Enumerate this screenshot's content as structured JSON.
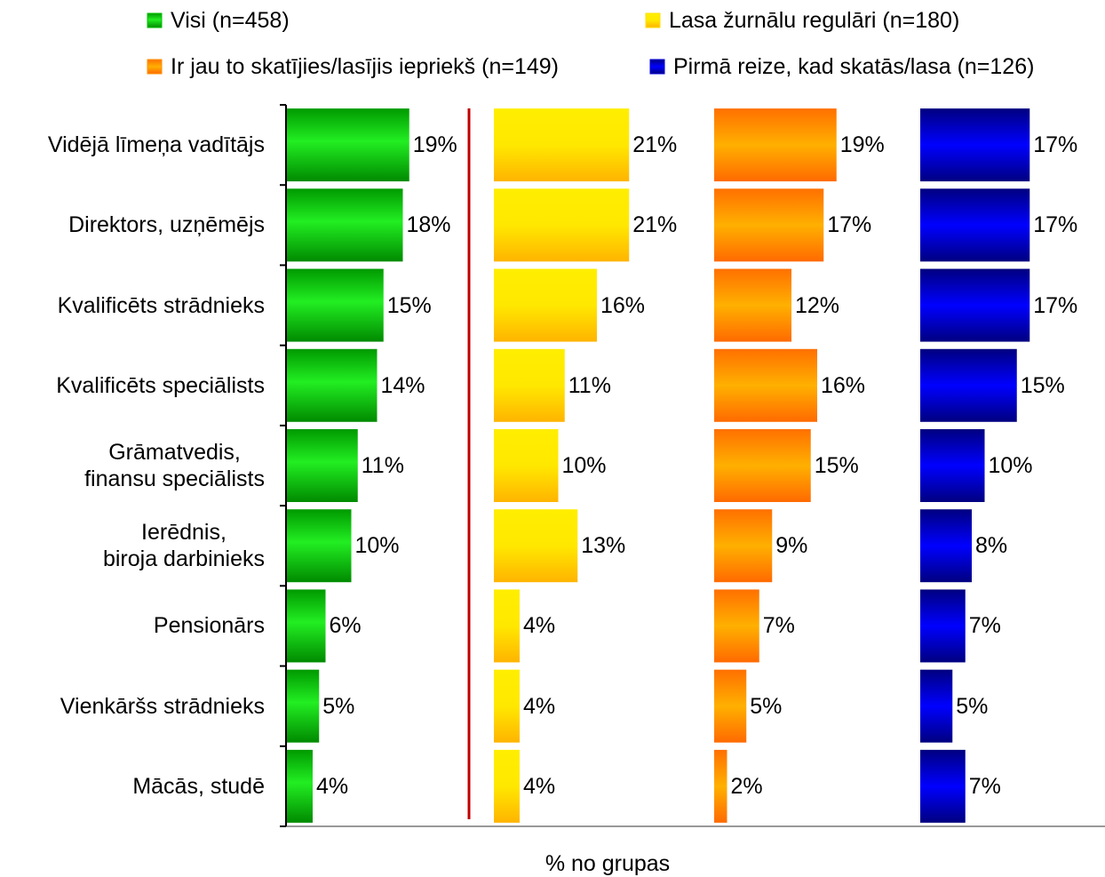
{
  "chart_data": {
    "type": "bar",
    "orientation": "horizontal",
    "layout": "panels",
    "xlabel": "% no grupas",
    "categories": [
      "Vidējā līmeņa vadītājs",
      "Direktors, uzņēmējs",
      "Kvalificēts strādnieks",
      "Kvalificēts speciālists",
      "Grāmatvedis,\nfinansu speciālists",
      "Ierēdnis,\nbiroja darbinieks",
      "Pensionārs",
      "Vienkāršs strādnieks",
      "Mācās, studē"
    ],
    "series": [
      {
        "name": "Visi (n=458)",
        "color": "#00c000",
        "values": [
          19,
          18,
          15,
          14,
          11,
          10,
          6,
          5,
          4
        ],
        "value_labels": [
          "19%",
          "18%",
          "15%",
          "14%",
          "11%",
          "10%",
          "6%",
          "5%",
          "4%"
        ]
      },
      {
        "name": "Lasa žurnālu regulāri  (n=180)",
        "color": "#ffe000",
        "values": [
          21,
          21,
          16,
          11,
          10,
          13,
          4,
          4,
          4
        ],
        "value_labels": [
          "21%",
          "21%",
          "16%",
          "11%",
          "10%",
          "13%",
          "4%",
          "4%",
          "4%"
        ]
      },
      {
        "name": "Ir jau to skatījies/lasījis iepriekš (n=149)",
        "color": "#ff9000",
        "values": [
          19,
          17,
          12,
          16,
          15,
          9,
          7,
          5,
          2
        ],
        "value_labels": [
          "19%",
          "17%",
          "12%",
          "16%",
          "15%",
          "9%",
          "7%",
          "5%",
          "2%"
        ]
      },
      {
        "name": "Pirmā reize, kad skatās/lasa (n=126)",
        "color": "#0000dd",
        "values": [
          17,
          17,
          17,
          15,
          10,
          8,
          7,
          5,
          7
        ],
        "value_labels": [
          "17%",
          "17%",
          "17%",
          "15%",
          "10%",
          "8%",
          "7%",
          "5%",
          "7%"
        ]
      }
    ]
  }
}
